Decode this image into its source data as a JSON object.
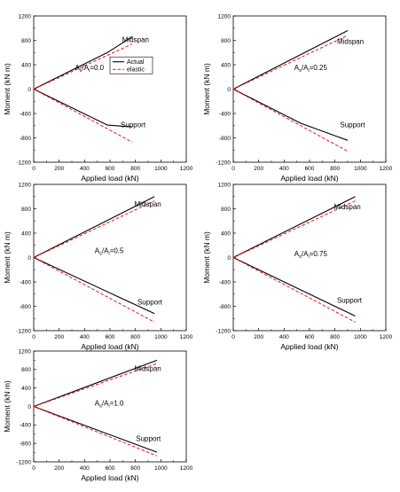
{
  "chart_data": [
    {
      "type": "line",
      "annotation": {
        "main": "A",
        "sub1": "s",
        "mid": "/A",
        "sub2": "i",
        "value": "=0.0"
      },
      "xlabel": "Applied load (kN)",
      "ylabel": "Moment (kN m)",
      "xlim": [
        0,
        1200
      ],
      "ylim": [
        -1200,
        1200
      ],
      "xticks": [
        "0",
        "200",
        "400",
        "600",
        "800",
        "1000",
        "1200"
      ],
      "yticks": [
        "1200",
        "800",
        "400",
        "0",
        "-400",
        "-800",
        "-1200"
      ],
      "legend": {
        "placement": "center",
        "entries": [
          "Actual",
          "elastic"
        ]
      },
      "labels": {
        "midspan": "Midspan",
        "support": "Support"
      },
      "series": [
        {
          "name": "Actual",
          "curve": "midspan",
          "x": [
            0,
            580,
            775
          ],
          "y": [
            0,
            600,
            860
          ]
        },
        {
          "name": "Actual",
          "curve": "support",
          "x": [
            0,
            580,
            775
          ],
          "y": [
            0,
            -590,
            -620
          ]
        },
        {
          "name": "elastic",
          "curve": "midspan",
          "x": [
            0,
            775
          ],
          "y": [
            0,
            740
          ]
        },
        {
          "name": "elastic",
          "curve": "support",
          "x": [
            0,
            775
          ],
          "y": [
            0,
            -870
          ]
        }
      ]
    },
    {
      "type": "line",
      "annotation": {
        "main": "A",
        "sub1": "s",
        "mid": "/A",
        "sub2": "i",
        "value": "=0.25"
      },
      "xlabel": "Applied load (kN)",
      "ylabel": "Moment (kN m)",
      "xlim": [
        0,
        1200
      ],
      "ylim": [
        -1200,
        1200
      ],
      "xticks": [
        "0",
        "200",
        "400",
        "600",
        "800",
        "1000",
        "1200"
      ],
      "yticks": [
        "1200",
        "800",
        "400",
        "0",
        "-400",
        "-800",
        "-1200"
      ],
      "labels": {
        "midspan": "Midspan",
        "support": "Support"
      },
      "series": [
        {
          "name": "Actual",
          "curve": "midspan",
          "x": [
            0,
            900
          ],
          "y": [
            0,
            960
          ]
        },
        {
          "name": "Actual",
          "curve": "support",
          "x": [
            0,
            530,
            900
          ],
          "y": [
            0,
            -560,
            -840
          ]
        },
        {
          "name": "elastic",
          "curve": "midspan",
          "x": [
            0,
            900
          ],
          "y": [
            0,
            880
          ]
        },
        {
          "name": "elastic",
          "curve": "support",
          "x": [
            0,
            900
          ],
          "y": [
            0,
            -1020
          ]
        }
      ]
    },
    {
      "type": "line",
      "annotation": {
        "main": "A",
        "sub1": "s",
        "mid": "/A",
        "sub2": "i",
        "value": "=0.5"
      },
      "xlabel": "Applied load (kN)",
      "ylabel": "Moment (kN m)",
      "xlim": [
        0,
        1200
      ],
      "ylim": [
        -1200,
        1200
      ],
      "xticks": [
        "0",
        "200",
        "400",
        "600",
        "800",
        "1000",
        "1200"
      ],
      "yticks": [
        "1200",
        "800",
        "400",
        "0",
        "-400",
        "-800",
        "-1200"
      ],
      "labels": {
        "midspan": "Midspan",
        "support": "Support"
      },
      "series": [
        {
          "name": "Actual",
          "curve": "midspan",
          "x": [
            0,
            950
          ],
          "y": [
            0,
            1000
          ]
        },
        {
          "name": "Actual",
          "curve": "support",
          "x": [
            0,
            950
          ],
          "y": [
            0,
            -920
          ]
        },
        {
          "name": "elastic",
          "curve": "midspan",
          "x": [
            0,
            950
          ],
          "y": [
            0,
            930
          ]
        },
        {
          "name": "elastic",
          "curve": "support",
          "x": [
            0,
            950
          ],
          "y": [
            0,
            -1060
          ]
        }
      ]
    },
    {
      "type": "line",
      "annotation": {
        "main": "A",
        "sub1": "s",
        "mid": "/A",
        "sub2": "i",
        "value": "=0.75"
      },
      "xlabel": "Applied load (kN)",
      "ylabel": "Moment (kN m)",
      "xlim": [
        0,
        1200
      ],
      "ylim": [
        -1200,
        1200
      ],
      "xticks": [
        "0",
        "200",
        "400",
        "600",
        "800",
        "1000",
        "1200"
      ],
      "yticks": [
        "1200",
        "800",
        "400",
        "0",
        "-400",
        "-800",
        "-1200"
      ],
      "labels": {
        "midspan": "Midspan",
        "support": "Support"
      },
      "series": [
        {
          "name": "Actual",
          "curve": "midspan",
          "x": [
            0,
            960
          ],
          "y": [
            0,
            1000
          ]
        },
        {
          "name": "Actual",
          "curve": "support",
          "x": [
            0,
            960
          ],
          "y": [
            0,
            -960
          ]
        },
        {
          "name": "elastic",
          "curve": "midspan",
          "x": [
            0,
            960
          ],
          "y": [
            0,
            930
          ]
        },
        {
          "name": "elastic",
          "curve": "support",
          "x": [
            0,
            960
          ],
          "y": [
            0,
            -1060
          ]
        }
      ]
    },
    {
      "type": "line",
      "annotation": {
        "main": "A",
        "sub1": "s",
        "mid": "/A",
        "sub2": "i",
        "value": "=1.0"
      },
      "xlabel": "Applied load (kN)",
      "ylabel": "Moment (kN m)",
      "xlim": [
        0,
        1200
      ],
      "ylim": [
        -1200,
        1200
      ],
      "xticks": [
        "0",
        "200",
        "400",
        "600",
        "800",
        "1000",
        "1200"
      ],
      "yticks": [
        "1200",
        "800",
        "400",
        "0",
        "-400",
        "-800",
        "-1200"
      ],
      "labels": {
        "midspan": "Midspan",
        "support": "Support"
      },
      "series": [
        {
          "name": "Actual",
          "curve": "midspan",
          "x": [
            0,
            970
          ],
          "y": [
            0,
            1000
          ]
        },
        {
          "name": "Actual",
          "curve": "support",
          "x": [
            0,
            970
          ],
          "y": [
            0,
            -990
          ]
        },
        {
          "name": "elastic",
          "curve": "midspan",
          "x": [
            0,
            970
          ],
          "y": [
            0,
            930
          ]
        },
        {
          "name": "elastic",
          "curve": "support",
          "x": [
            0,
            970
          ],
          "y": [
            0,
            -1070
          ]
        }
      ]
    }
  ],
  "colors": {
    "actual": "#000000",
    "elastic": "#e8141b"
  }
}
